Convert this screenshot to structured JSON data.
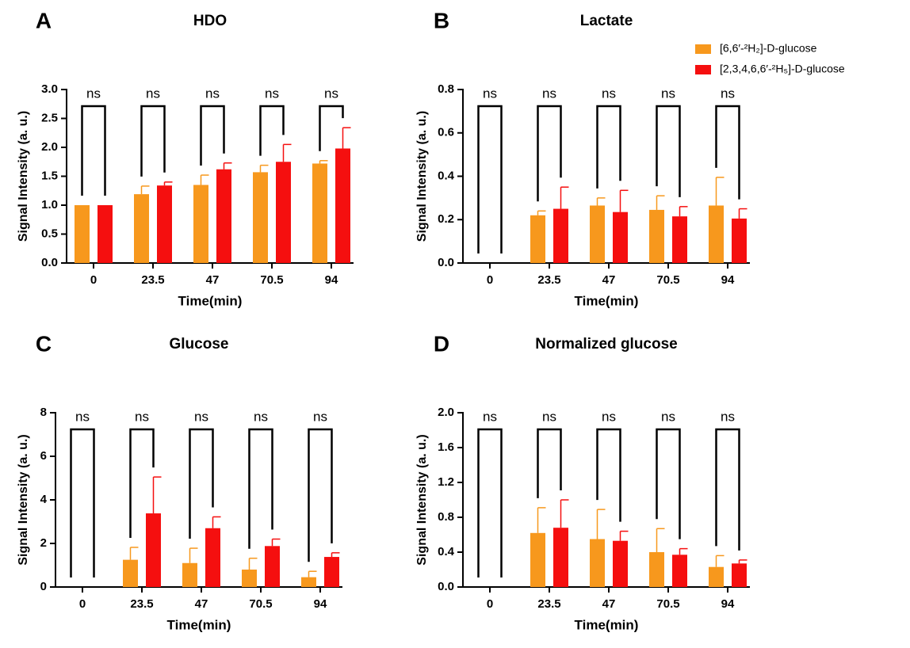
{
  "chart_data": [
    {
      "type": "bar",
      "panel_label": "A",
      "title": "HDO",
      "x_label": "Time(min)",
      "y_label": "Signal Intensity (a. u.)",
      "categories": [
        "0",
        "23.5",
        "47",
        "70.5",
        "94"
      ],
      "series": [
        {
          "color": "#f7981d",
          "values": [
            1.0,
            1.19,
            1.35,
            1.57,
            1.72
          ],
          "errors": [
            null,
            0.14,
            0.17,
            0.12,
            0.05
          ]
        },
        {
          "color": "#f50f0f",
          "values": [
            1.0,
            1.34,
            1.62,
            1.75,
            1.98
          ],
          "errors": [
            null,
            0.06,
            0.11,
            0.3,
            0.36
          ]
        }
      ],
      "ylim": [
        0,
        3
      ],
      "yticks": [
        {
          "value": 0,
          "label": "0.0"
        },
        0.5,
        {
          "value": 1,
          "label": "1.0"
        },
        1.5,
        {
          "value": 2,
          "label": "2.0"
        },
        2.5,
        {
          "value": 3,
          "label": "3.0"
        }
      ],
      "annotations": [
        "ns",
        "ns",
        "ns",
        "ns",
        "ns"
      ]
    },
    {
      "type": "bar",
      "panel_label": "B",
      "title": "Lactate",
      "x_label": "Time(min)",
      "y_label": "Signal Intensity (a. u.)",
      "categories": [
        "0",
        "23.5",
        "47",
        "70.5",
        "94"
      ],
      "series": [
        {
          "name": "[6,6′-²H₂]-D-glucose",
          "color": "#f7981d",
          "values": [
            null,
            0.22,
            0.265,
            0.245,
            0.265
          ],
          "errors": [
            null,
            0.02,
            0.035,
            0.065,
            0.13
          ]
        },
        {
          "name": "[2,3,4,6,6′-²H₅]-D-glucose",
          "color": "#f50f0f",
          "values": [
            null,
            0.25,
            0.235,
            0.215,
            0.205
          ],
          "errors": [
            null,
            0.1,
            0.1,
            0.045,
            0.045
          ]
        }
      ],
      "ylim": [
        0,
        0.8
      ],
      "yticks": [
        {
          "value": 0,
          "label": "0.0"
        },
        0.2,
        0.4,
        0.6,
        0.8
      ],
      "annotations": [
        "ns",
        "ns",
        "ns",
        "ns",
        "ns"
      ],
      "legend": "upper right"
    },
    {
      "type": "bar",
      "panel_label": "C",
      "title": "Glucose",
      "x_label": "Time(min)",
      "y_label": "Signal Intensity (a. u.)",
      "categories": [
        "0",
        "23.5",
        "47",
        "70.5",
        "94"
      ],
      "series": [
        {
          "color": "#f7981d",
          "values": [
            null,
            1.25,
            1.1,
            0.8,
            0.45
          ],
          "errors": [
            null,
            0.57,
            0.68,
            0.52,
            0.27
          ]
        },
        {
          "color": "#f50f0f",
          "values": [
            null,
            3.38,
            2.7,
            1.88,
            1.38
          ],
          "errors": [
            null,
            1.67,
            0.52,
            0.32,
            0.19
          ]
        }
      ],
      "ylim": [
        0,
        8
      ],
      "yticks": [
        0,
        2,
        4,
        6,
        8
      ],
      "annotations": [
        "ns",
        "ns",
        "ns",
        "ns",
        "ns"
      ]
    },
    {
      "type": "bar",
      "panel_label": "D",
      "title": "Normalized glucose",
      "x_label": "Time(min)",
      "y_label": "Signal Intensity (a. u.)",
      "categories": [
        "0",
        "23.5",
        "47",
        "70.5",
        "94"
      ],
      "series": [
        {
          "color": "#f7981d",
          "values": [
            null,
            0.62,
            0.55,
            0.4,
            0.23
          ],
          "errors": [
            null,
            0.29,
            0.34,
            0.27,
            0.13
          ]
        },
        {
          "color": "#f50f0f",
          "values": [
            null,
            0.68,
            0.53,
            0.37,
            0.27
          ],
          "errors": [
            null,
            0.32,
            0.11,
            0.07,
            0.04
          ]
        }
      ],
      "ylim": [
        0,
        2
      ],
      "yticks": [
        {
          "value": 0,
          "label": "0.0"
        },
        0.4,
        0.8,
        1.2,
        1.6,
        {
          "value": 2,
          "label": "2.0"
        }
      ],
      "annotations": [
        "ns",
        "ns",
        "ns",
        "ns",
        "ns"
      ]
    }
  ]
}
